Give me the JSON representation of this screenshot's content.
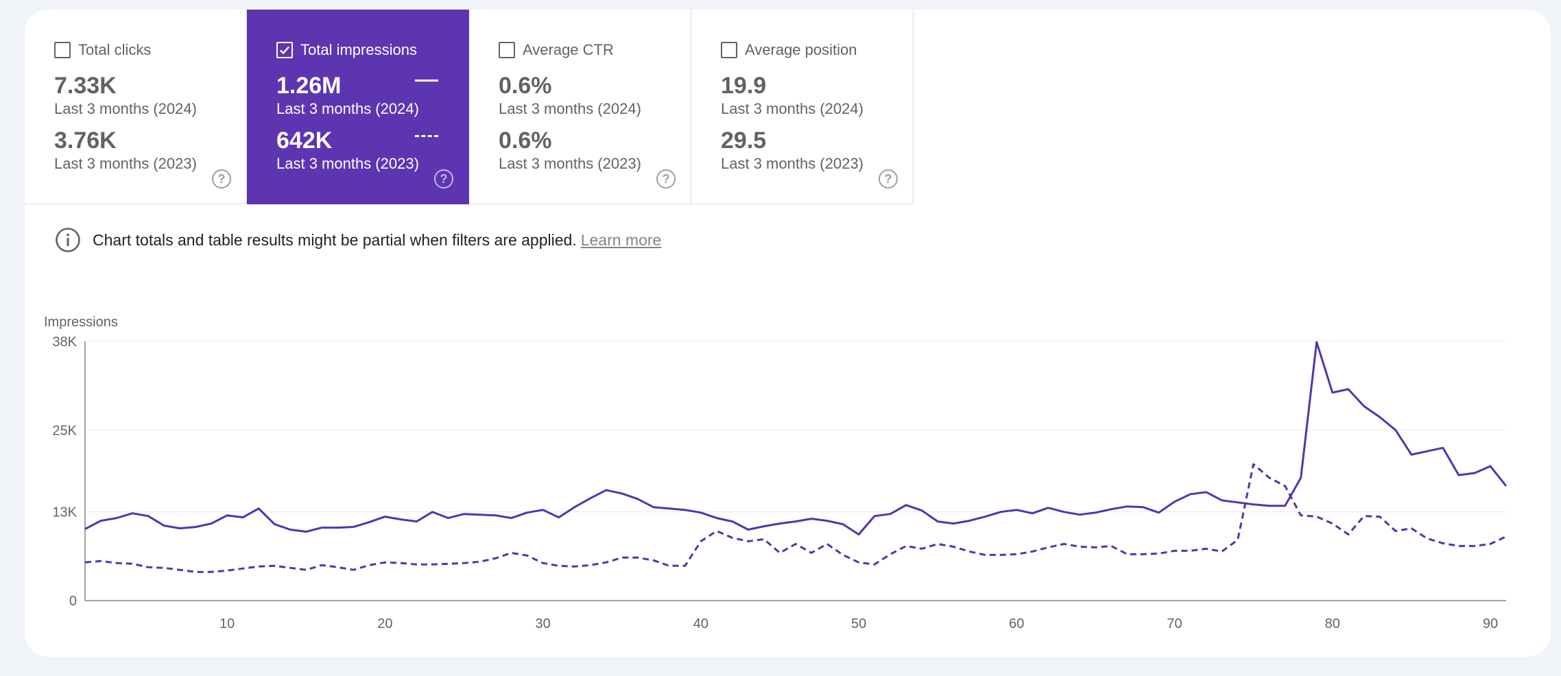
{
  "metrics": [
    {
      "label": "Total clicks",
      "checked": false,
      "current_value": "7.33K",
      "current_period": "Last 3 months (2024)",
      "previous_value": "3.76K",
      "previous_period": "Last 3 months (2023)",
      "help": "?"
    },
    {
      "label": "Total impressions",
      "checked": true,
      "current_value": "1.26M",
      "current_period": "Last 3 months (2024)",
      "previous_value": "642K",
      "previous_period": "Last 3 months (2023)",
      "help": "?"
    },
    {
      "label": "Average CTR",
      "checked": false,
      "current_value": "0.6%",
      "current_period": "Last 3 months (2024)",
      "previous_value": "0.6%",
      "previous_period": "Last 3 months (2023)",
      "help": "?"
    },
    {
      "label": "Average position",
      "checked": false,
      "current_value": "19.9",
      "current_period": "Last 3 months (2024)",
      "previous_value": "29.5",
      "previous_period": "Last 3 months (2023)",
      "help": "?"
    }
  ],
  "notice": {
    "text": "Chart totals and table results might be partial when filters are applied.",
    "link": "Learn more"
  },
  "colors": {
    "accent": "#5e35b1",
    "line": "#5632b0"
  },
  "chart_data": {
    "type": "line",
    "ylabel": "Impressions",
    "ytick_labels": [
      "0",
      "13K",
      "25K",
      "38K"
    ],
    "yticks": [
      0,
      13000,
      25000,
      38000
    ],
    "ylim": [
      0,
      38000
    ],
    "xlim": [
      1,
      91
    ],
    "xticks": [
      10,
      20,
      30,
      40,
      50,
      60,
      70,
      80,
      90
    ],
    "grid": true,
    "series": [
      {
        "style": "solid",
        "values": [
          10500,
          11700,
          12100,
          12800,
          12400,
          11000,
          10600,
          10800,
          11300,
          12500,
          12200,
          13500,
          11200,
          10400,
          10100,
          10700,
          10700,
          10800,
          11500,
          12300,
          11900,
          11600,
          13000,
          12100,
          12700,
          12600,
          12500,
          12100,
          12900,
          13300,
          12200,
          13700,
          15000,
          16200,
          15700,
          14900,
          13700,
          13500,
          13300,
          12900,
          12100,
          11600,
          10400,
          10900,
          11300,
          11600,
          12000,
          11700,
          11200,
          9700,
          12400,
          12700,
          14000,
          13200,
          11600,
          11300,
          11700,
          12300,
          13000,
          13300,
          12800,
          13600,
          13000,
          12600,
          12900,
          13400,
          13800,
          13700,
          12900,
          14500,
          15600,
          15900,
          14700,
          14400,
          14100,
          13900,
          13900,
          18000,
          37900,
          30500,
          31000,
          28500,
          26900,
          25000,
          21400,
          21900,
          22400,
          18400,
          18700,
          19700,
          16800
        ]
      },
      {
        "style": "dashed",
        "values": [
          5600,
          5800,
          5500,
          5400,
          4900,
          4800,
          4500,
          4200,
          4200,
          4400,
          4700,
          5000,
          5100,
          4800,
          4500,
          5200,
          4900,
          4500,
          5200,
          5600,
          5500,
          5300,
          5300,
          5400,
          5500,
          5700,
          6200,
          7000,
          6600,
          5500,
          5100,
          5000,
          5200,
          5600,
          6300,
          6300,
          5900,
          5100,
          5100,
          8700,
          10200,
          9200,
          8700,
          9000,
          7000,
          8300,
          7000,
          8300,
          6700,
          5600,
          5300,
          6800,
          8000,
          7600,
          8300,
          7900,
          7200,
          6700,
          6700,
          6800,
          7200,
          7800,
          8300,
          7900,
          7800,
          8000,
          6800,
          6800,
          6900,
          7300,
          7300,
          7600,
          7200,
          8900,
          20000,
          18000,
          16800,
          12500,
          12300,
          11300,
          9700,
          12400,
          12300,
          10200,
          10600,
          9100,
          8400,
          8000,
          8000,
          8300,
          9400
        ]
      }
    ]
  }
}
